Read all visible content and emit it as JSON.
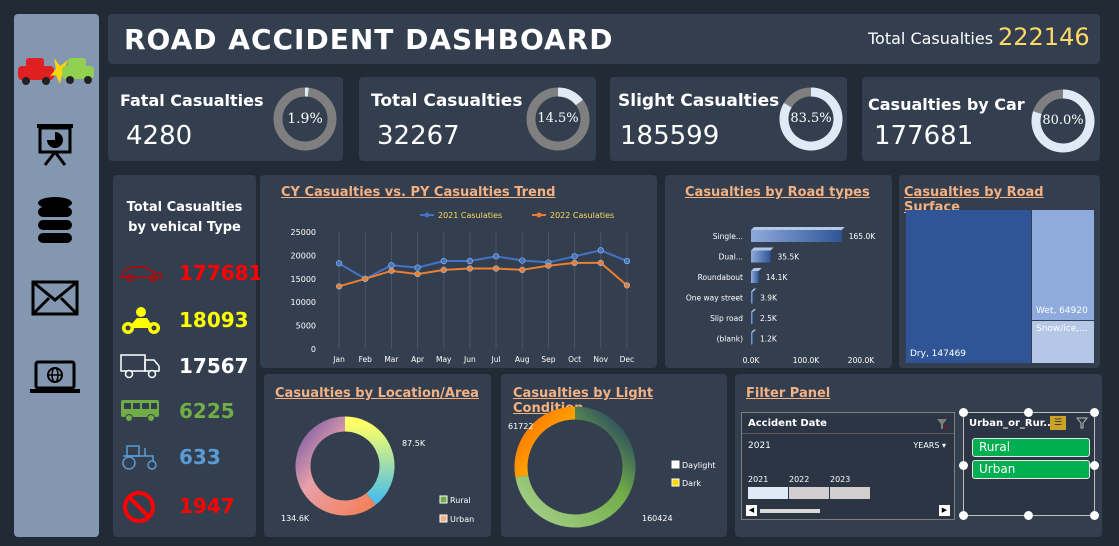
{
  "header": {
    "title": "ROAD ACCIDENT DASHBOARD",
    "total_label": "Total Casualties",
    "total_value": "222146"
  },
  "kpis": [
    {
      "label": "Fatal Casualties",
      "value": "4280",
      "pct_text": "1.9%",
      "pct": 0.019
    },
    {
      "label": "Total Casualties",
      "value": "32267",
      "pct_text": "14.5%",
      "pct": 0.145
    },
    {
      "label": "Slight Casualties",
      "value": "185599",
      "pct_text": "83.5%",
      "pct": 0.835
    },
    {
      "label": "Casualties by Car",
      "value": "177681",
      "pct_text": "80.0%",
      "pct": 0.8
    }
  ],
  "vehicles": {
    "title_line1": "Total Casualties",
    "title_line2": "by vehical Type",
    "items": [
      {
        "icon": "car-icon",
        "value": "177681",
        "color": "#ff0000"
      },
      {
        "icon": "motorcycle-icon",
        "value": "18093",
        "color": "#ffff00"
      },
      {
        "icon": "truck-icon",
        "value": "17567",
        "color": "#ffffff"
      },
      {
        "icon": "bus-icon",
        "value": "6225",
        "color": "#70ad47"
      },
      {
        "icon": "tractor-icon",
        "value": "633",
        "color": "#5b9bd5"
      },
      {
        "icon": "prohibited-icon",
        "value": "1947",
        "color": "#ff0000"
      }
    ]
  },
  "chart_data": [
    {
      "type": "line",
      "title": "CY Casualties vs. PY Casualties Trend",
      "categories": [
        "Jan",
        "Feb",
        "Mar",
        "Apr",
        "May",
        "Jun",
        "Jul",
        "Aug",
        "Sep",
        "Oct",
        "Nov",
        "Dec"
      ],
      "series": [
        {
          "name": "2021 Casulaties",
          "color": "#4472c4",
          "values": [
            18300,
            15000,
            17900,
            17400,
            18800,
            18800,
            19800,
            18900,
            18500,
            19800,
            21100,
            18800
          ]
        },
        {
          "name": "2022 Casulaties",
          "color": "#ed7d31",
          "values": [
            13400,
            15000,
            16700,
            16000,
            16900,
            17200,
            17200,
            16900,
            17800,
            18400,
            18400,
            13600
          ]
        }
      ],
      "ylim": [
        0,
        25000
      ],
      "yticks": [
        "0",
        "5000",
        "10000",
        "15000",
        "20000",
        "25000"
      ],
      "grid": true,
      "legend": "top"
    },
    {
      "type": "bar",
      "title": "Casualties by Road types",
      "categories": [
        "Single...",
        "Dual...",
        "Roundabout",
        "One way street",
        "Slip road",
        "(blank)"
      ],
      "values": [
        165000,
        35500,
        14100,
        3900,
        2500,
        1200
      ],
      "labels": [
        "165.0K",
        "35.5K",
        "14.1K",
        "3.9K",
        "2.5K",
        "1.2K"
      ],
      "xticks": [
        "0.0K",
        "100.0K",
        "200.0K"
      ],
      "xlim": [
        0,
        200000
      ]
    },
    {
      "type": "heatmap",
      "title": "Casualties by Road Surface",
      "items": [
        {
          "label": "Dry, 147469",
          "value": 147469,
          "color": "#2f5597"
        },
        {
          "label": "Wet, 64920",
          "value": 64920,
          "color": "#8faadc"
        },
        {
          "label": "Snow/ice,...",
          "value": 9757,
          "color": "#b4c7e7"
        }
      ]
    },
    {
      "type": "pie",
      "title": "Casualties by Location/Area",
      "labels": [
        "87.5K",
        "134.6K"
      ],
      "legend": [
        "Rural",
        "Urban"
      ],
      "values": [
        87500,
        134600
      ]
    },
    {
      "type": "pie",
      "title": "Casualties by Light Condition",
      "labels": [
        "61722",
        "160424"
      ],
      "legend": [
        "Daylight",
        "Dark"
      ],
      "values": [
        61722,
        160424
      ]
    }
  ],
  "filter": {
    "title": "Filter Panel",
    "timeline": {
      "header": "Accident Date",
      "selected": "2021",
      "period": "YEARS",
      "years": [
        "2021",
        "2022",
        "2023"
      ]
    },
    "slicer": {
      "header": "Urban_or_Rur...",
      "options": [
        "Rural",
        "Urban"
      ]
    }
  }
}
